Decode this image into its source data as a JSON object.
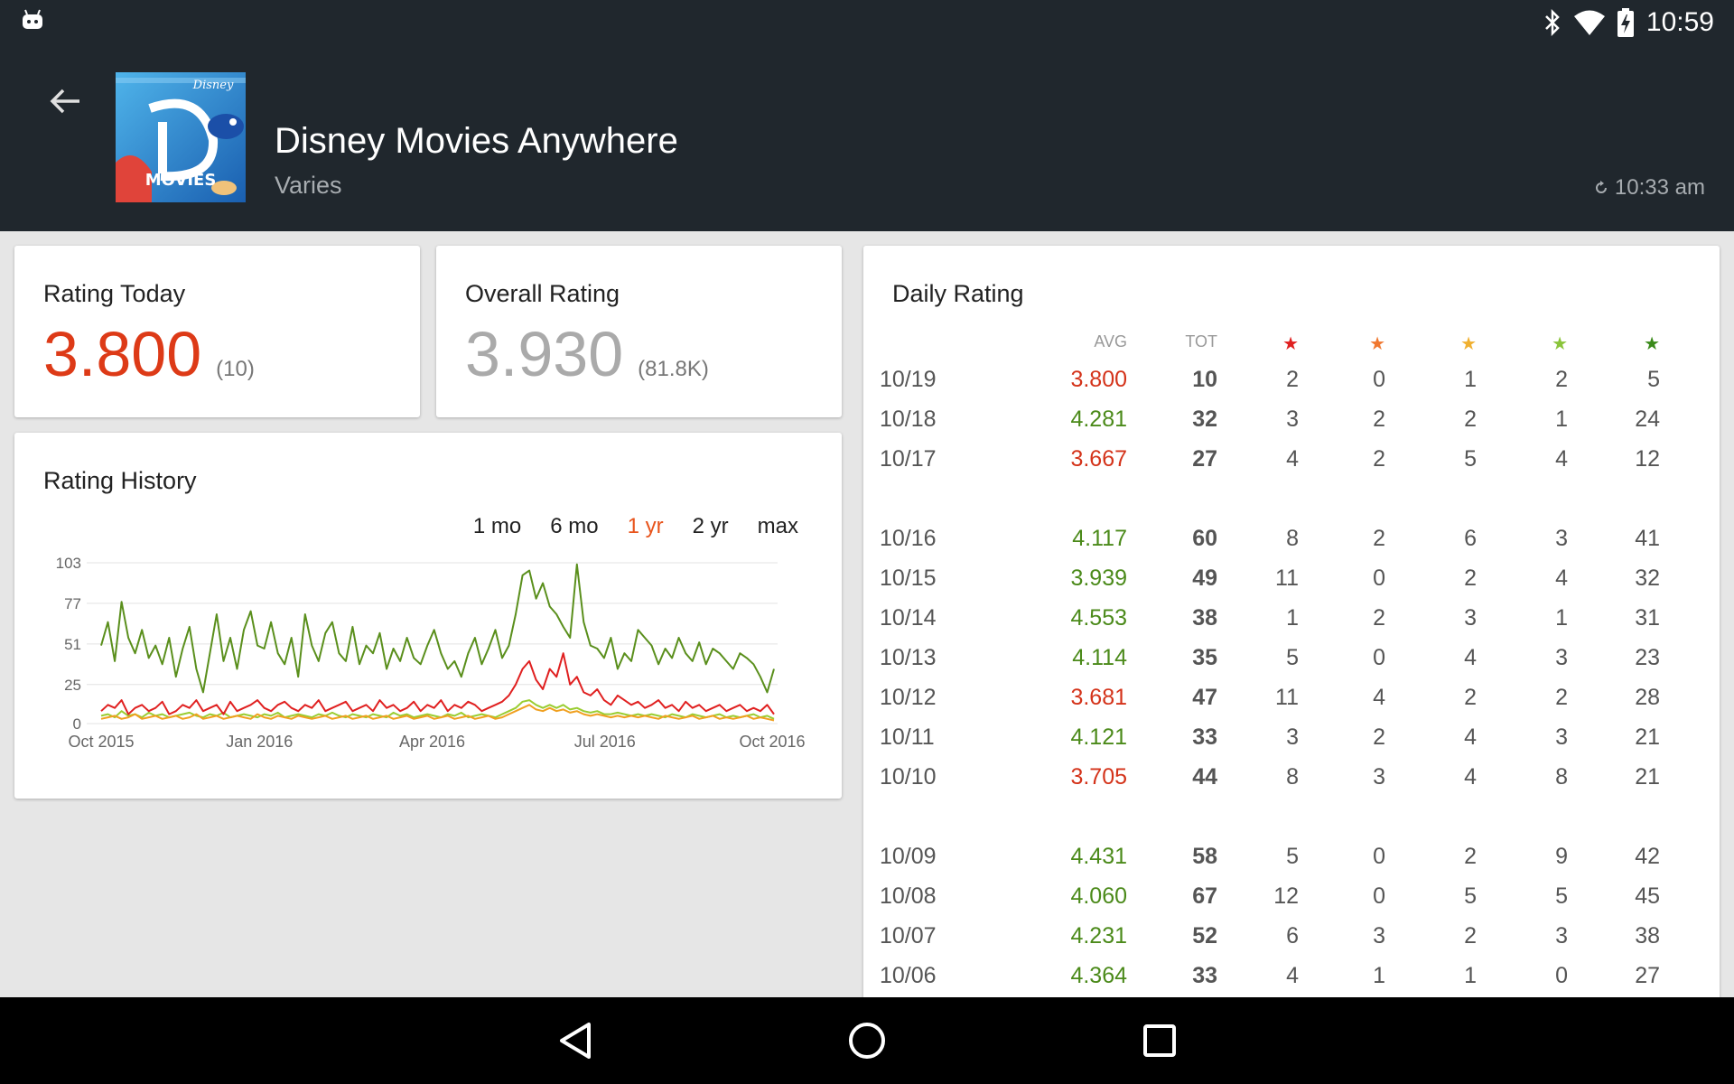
{
  "status_bar": {
    "time": "10:59",
    "icons": [
      "android-robot-icon",
      "bluetooth-icon",
      "wifi-icon",
      "battery-charging-icon"
    ]
  },
  "app": {
    "name": "Disney Movies Anywhere",
    "version": "Varies",
    "updated": "10:33 am",
    "icon_label": "MOVIES",
    "icon_brand": "Disney"
  },
  "rating_today": {
    "title": "Rating Today",
    "value": "3.800",
    "count": "(10)"
  },
  "overall_rating": {
    "title": "Overall Rating",
    "value": "3.930",
    "count": "(81.8K)"
  },
  "rating_history": {
    "title": "Rating History",
    "ranges": [
      "1 mo",
      "6 mo",
      "1 yr",
      "2 yr",
      "max"
    ],
    "active_range": "1 yr"
  },
  "chart_data": {
    "type": "line",
    "x_labels": [
      "Oct 2015",
      "Jan 2016",
      "Apr 2016",
      "Jul 2016",
      "Oct 2016"
    ],
    "y_ticks": [
      0,
      25,
      51,
      77,
      103
    ],
    "ylim": [
      0,
      103
    ],
    "grid": true,
    "series": [
      {
        "color": "#5a8f1c",
        "values": [
          50,
          65,
          40,
          78,
          55,
          45,
          60,
          42,
          50,
          38,
          55,
          30,
          48,
          62,
          35,
          20,
          45,
          70,
          40,
          55,
          35,
          60,
          72,
          50,
          48,
          65,
          45,
          38,
          55,
          30,
          70,
          50,
          40,
          58,
          65,
          45,
          40,
          62,
          38,
          50,
          45,
          58,
          35,
          48,
          40,
          55,
          42,
          38,
          50,
          60,
          45,
          35,
          40,
          30,
          45,
          55,
          38,
          48,
          60,
          42,
          50,
          70,
          95,
          98,
          80,
          90,
          75,
          70,
          62,
          55,
          102,
          65,
          50,
          48,
          42,
          55,
          35,
          45,
          40,
          60,
          55,
          50,
          38,
          48,
          42,
          55,
          45,
          40,
          52,
          38,
          48,
          45,
          40,
          35,
          45,
          42,
          38,
          30,
          20,
          35
        ]
      },
      {
        "color": "#e02020",
        "values": [
          8,
          12,
          10,
          15,
          6,
          10,
          12,
          8,
          10,
          14,
          6,
          8,
          12,
          10,
          15,
          8,
          10,
          12,
          6,
          14,
          8,
          10,
          12,
          15,
          10,
          8,
          12,
          14,
          10,
          8,
          12,
          10,
          15,
          8,
          10,
          12,
          14,
          8,
          10,
          12,
          8,
          15,
          10,
          12,
          8,
          10,
          14,
          8,
          12,
          10,
          15,
          8,
          12,
          10,
          14,
          12,
          8,
          10,
          12,
          14,
          18,
          25,
          35,
          40,
          28,
          22,
          35,
          30,
          45,
          25,
          30,
          20,
          18,
          22,
          15,
          12,
          18,
          15,
          12,
          14,
          10,
          12,
          15,
          10,
          12,
          8,
          14,
          10,
          12,
          8,
          10,
          12,
          8,
          10,
          12,
          8,
          10,
          8,
          12,
          6
        ]
      },
      {
        "color": "#f0a020",
        "values": [
          3,
          4,
          5,
          3,
          4,
          6,
          3,
          4,
          5,
          3,
          4,
          5,
          3,
          4,
          6,
          3,
          4,
          5,
          3,
          4,
          5,
          4,
          3,
          6,
          4,
          3,
          5,
          4,
          3,
          5,
          4,
          3,
          4,
          5,
          3,
          4,
          5,
          3,
          4,
          5,
          3,
          4,
          5,
          3,
          4,
          5,
          3,
          4,
          5,
          3,
          4,
          5,
          3,
          4,
          5,
          3,
          4,
          5,
          3,
          4,
          6,
          8,
          10,
          12,
          9,
          8,
          10,
          8,
          9,
          7,
          8,
          6,
          5,
          6,
          5,
          4,
          5,
          4,
          5,
          4,
          5,
          4,
          3,
          5,
          4,
          3,
          4,
          5,
          3,
          4,
          5,
          3,
          4,
          3,
          4,
          5,
          3,
          4,
          3,
          2
        ]
      },
      {
        "color": "#9acd32",
        "values": [
          5,
          6,
          4,
          8,
          5,
          6,
          4,
          7,
          5,
          6,
          4,
          5,
          6,
          7,
          5,
          4,
          6,
          5,
          7,
          4,
          5,
          6,
          5,
          4,
          6,
          5,
          7,
          4,
          5,
          6,
          5,
          4,
          6,
          5,
          7,
          5,
          4,
          6,
          5,
          4,
          6,
          5,
          4,
          7,
          5,
          6,
          4,
          5,
          6,
          5,
          4,
          6,
          5,
          7,
          4,
          5,
          6,
          5,
          4,
          6,
          8,
          10,
          14,
          15,
          12,
          10,
          12,
          10,
          12,
          9,
          10,
          8,
          7,
          8,
          6,
          6,
          7,
          6,
          5,
          6,
          5,
          6,
          5,
          4,
          6,
          5,
          4,
          6,
          5,
          4,
          5,
          6,
          4,
          5,
          4,
          5,
          6,
          4,
          5,
          3
        ]
      }
    ]
  },
  "daily_rating": {
    "title": "Daily Rating",
    "headers": {
      "avg": "AVG",
      "tot": "TOT"
    },
    "star_colors": [
      "#e02020",
      "#f07830",
      "#f0b030",
      "#8ac43a",
      "#3a8a1a"
    ],
    "rows": [
      {
        "date": "10/19",
        "avg": "3.800",
        "tot": "10",
        "s1": "2",
        "s2": "0",
        "s3": "1",
        "s4": "2",
        "s5": "5",
        "good": false
      },
      {
        "date": "10/18",
        "avg": "4.281",
        "tot": "32",
        "s1": "3",
        "s2": "2",
        "s3": "2",
        "s4": "1",
        "s5": "24",
        "good": true
      },
      {
        "date": "10/17",
        "avg": "3.667",
        "tot": "27",
        "s1": "4",
        "s2": "2",
        "s3": "5",
        "s4": "4",
        "s5": "12",
        "good": false
      },
      {
        "date": "10/16",
        "avg": "4.117",
        "tot": "60",
        "s1": "8",
        "s2": "2",
        "s3": "6",
        "s4": "3",
        "s5": "41",
        "good": true
      },
      {
        "date": "10/15",
        "avg": "3.939",
        "tot": "49",
        "s1": "11",
        "s2": "0",
        "s3": "2",
        "s4": "4",
        "s5": "32",
        "good": true
      },
      {
        "date": "10/14",
        "avg": "4.553",
        "tot": "38",
        "s1": "1",
        "s2": "2",
        "s3": "3",
        "s4": "1",
        "s5": "31",
        "good": true
      },
      {
        "date": "10/13",
        "avg": "4.114",
        "tot": "35",
        "s1": "5",
        "s2": "0",
        "s3": "4",
        "s4": "3",
        "s5": "23",
        "good": true
      },
      {
        "date": "10/12",
        "avg": "3.681",
        "tot": "47",
        "s1": "11",
        "s2": "4",
        "s3": "2",
        "s4": "2",
        "s5": "28",
        "good": false
      },
      {
        "date": "10/11",
        "avg": "4.121",
        "tot": "33",
        "s1": "3",
        "s2": "2",
        "s3": "4",
        "s4": "3",
        "s5": "21",
        "good": true
      },
      {
        "date": "10/10",
        "avg": "3.705",
        "tot": "44",
        "s1": "8",
        "s2": "3",
        "s3": "4",
        "s4": "8",
        "s5": "21",
        "good": false
      },
      {
        "date": "10/09",
        "avg": "4.431",
        "tot": "58",
        "s1": "5",
        "s2": "0",
        "s3": "2",
        "s4": "9",
        "s5": "42",
        "good": true
      },
      {
        "date": "10/08",
        "avg": "4.060",
        "tot": "67",
        "s1": "12",
        "s2": "0",
        "s3": "5",
        "s4": "5",
        "s5": "45",
        "good": true
      },
      {
        "date": "10/07",
        "avg": "4.231",
        "tot": "52",
        "s1": "6",
        "s2": "3",
        "s3": "2",
        "s4": "3",
        "s5": "38",
        "good": true
      },
      {
        "date": "10/06",
        "avg": "4.364",
        "tot": "33",
        "s1": "4",
        "s2": "1",
        "s3": "1",
        "s4": "0",
        "s5": "27",
        "good": true
      }
    ]
  },
  "nav_bar": {
    "buttons": [
      "back-nav-icon",
      "home-nav-icon",
      "recents-nav-icon"
    ]
  }
}
